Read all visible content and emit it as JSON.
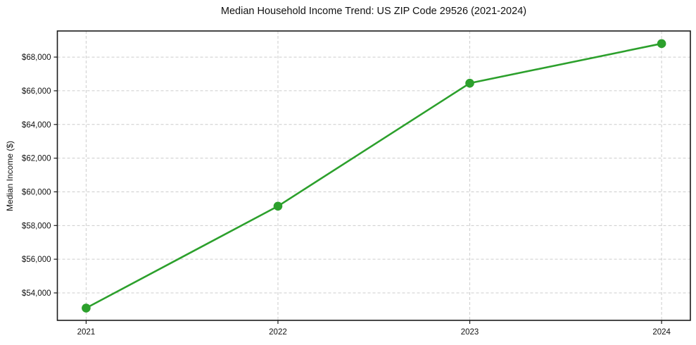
{
  "chart_data": {
    "type": "line",
    "title": "Median Household Income Trend: US ZIP Code 29526 (2021-2024)",
    "xlabel": "",
    "ylabel": "Median Income ($)",
    "x": [
      2021,
      2022,
      2023,
      2024
    ],
    "series": [
      {
        "name": "Median Household Income",
        "values": [
          53100,
          59150,
          66450,
          68800
        ]
      }
    ],
    "xticks": [
      {
        "value": 2021,
        "label": "2021"
      },
      {
        "value": 2022,
        "label": "2022"
      },
      {
        "value": 2023,
        "label": "2023"
      },
      {
        "value": 2024,
        "label": "2024"
      }
    ],
    "yticks": [
      {
        "value": 54000,
        "label": "$54,000"
      },
      {
        "value": 56000,
        "label": "$56,000"
      },
      {
        "value": 58000,
        "label": "$58,000"
      },
      {
        "value": 60000,
        "label": "$60,000"
      },
      {
        "value": 62000,
        "label": "$62,000"
      },
      {
        "value": 64000,
        "label": "$64,000"
      },
      {
        "value": 66000,
        "label": "$66,000"
      },
      {
        "value": 68000,
        "label": "$68,000"
      }
    ],
    "xlim": [
      2020.85,
      2024.15
    ],
    "ylim": [
      52370,
      69550
    ],
    "grid": true,
    "legend": false,
    "marker": "circle",
    "colors": {
      "line": "#2ca02c",
      "marker": "#2ca02c",
      "grid": "#cccccc",
      "frame": "#1a1a1a",
      "tick": "#1a1a1a",
      "background": "#ffffff"
    }
  }
}
